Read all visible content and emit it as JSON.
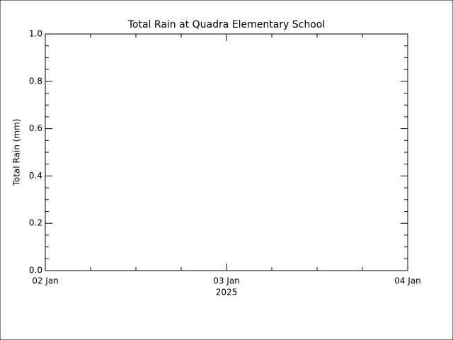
{
  "chart_data": {
    "type": "line",
    "title": "Total Rain at Quadra Elementary School",
    "ylabel": "Total Rain (mm)",
    "xticks": [
      "02 Jan",
      "03 Jan",
      "04 Jan"
    ],
    "year_label": "2025",
    "ylim": [
      0,
      1
    ],
    "yticks": [
      {
        "value": 0,
        "label": "0.0"
      },
      0.2,
      0.4,
      0.6,
      0.8,
      {
        "value": 1,
        "label": "1.0"
      }
    ],
    "y_minor_intervals": 4,
    "x_minor_intervals": 4,
    "series": [],
    "color": "#000000"
  }
}
